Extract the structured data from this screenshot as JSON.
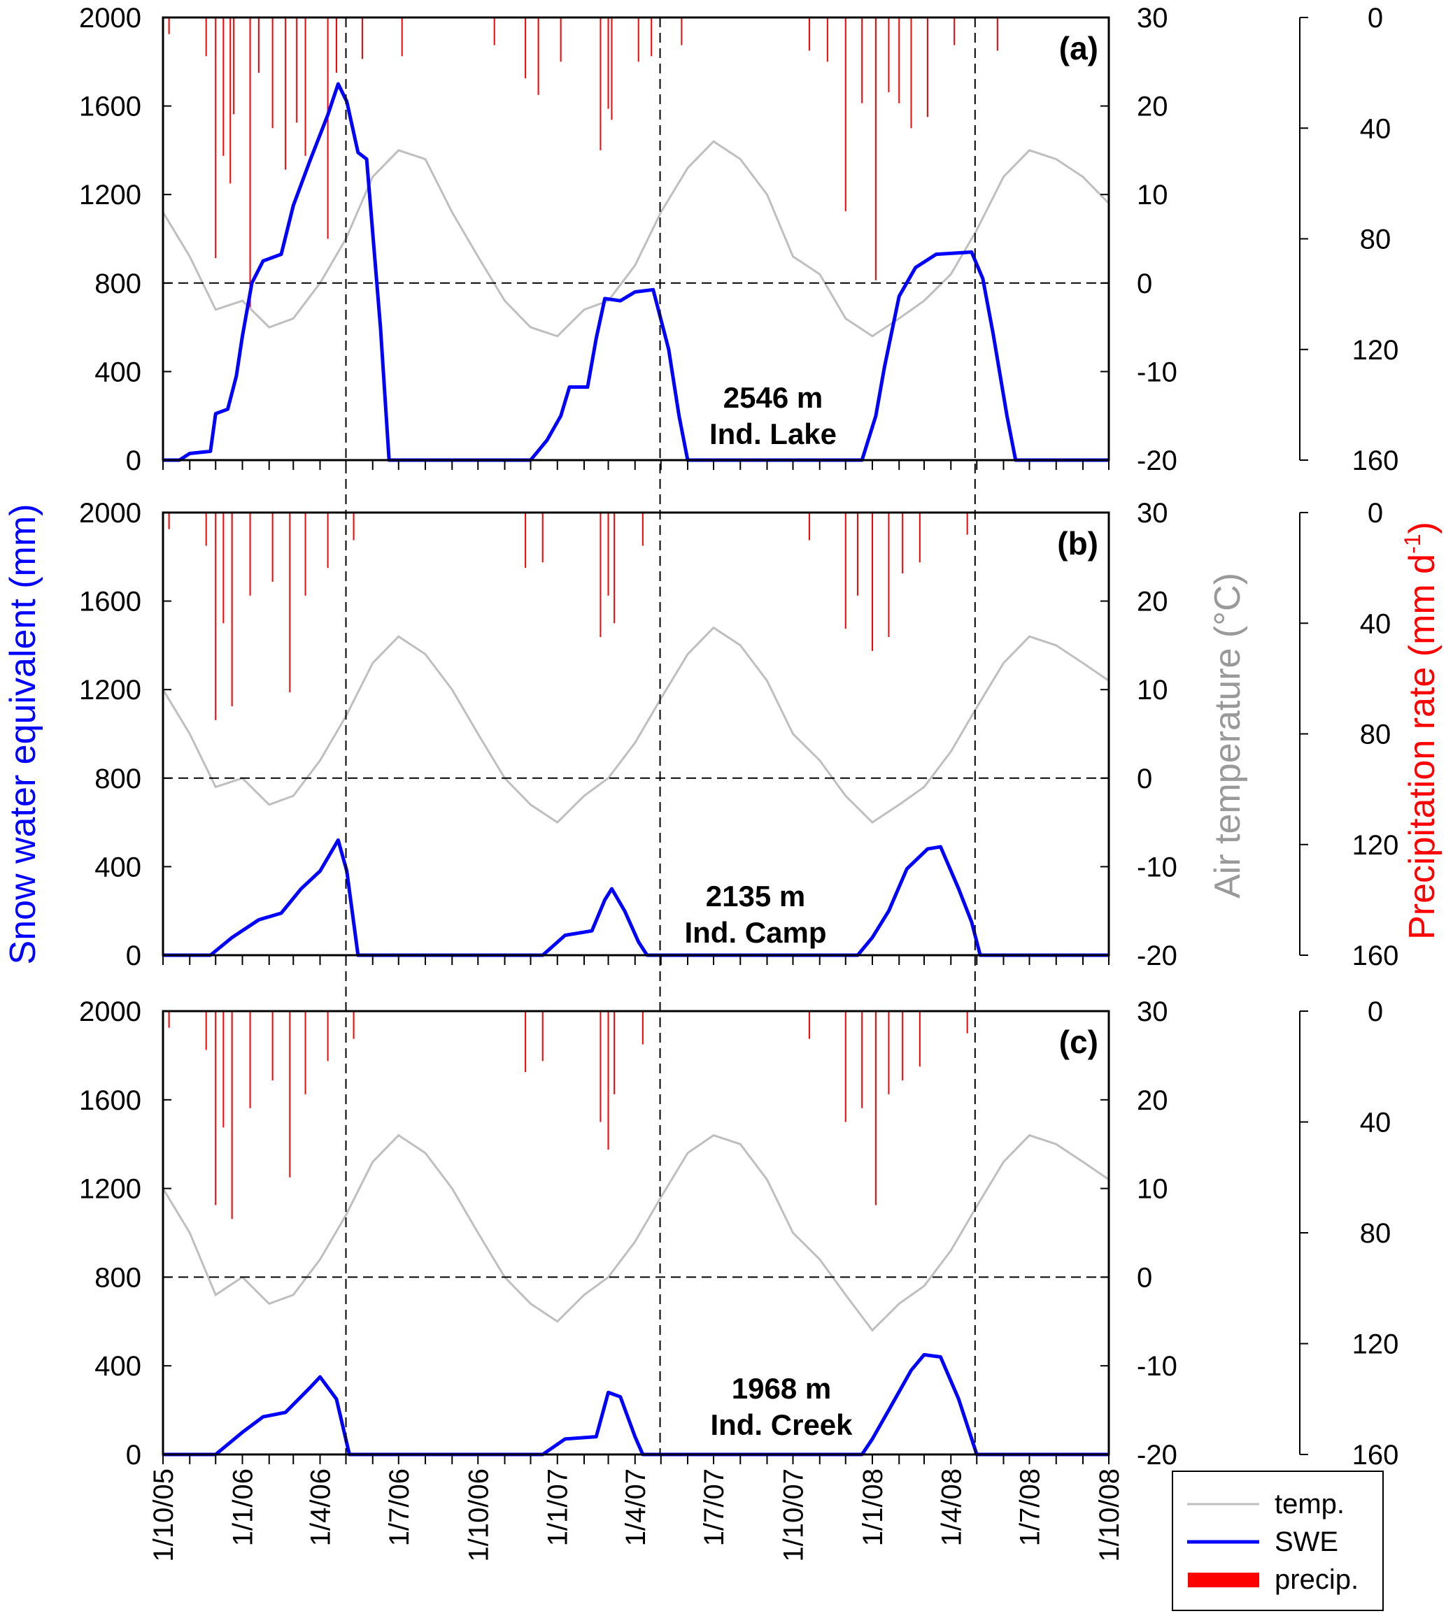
{
  "chart_data": {
    "type": "line",
    "x_range": [
      "2005-10-01",
      "2008-10-01"
    ],
    "x_tick_labels": [
      "1/10/05",
      "1/1/06",
      "1/4/06",
      "1/7/06",
      "1/10/06",
      "1/1/07",
      "1/4/07",
      "1/7/07",
      "1/10/07",
      "1/1/08",
      "1/4/08",
      "1/7/08",
      "1/10/08"
    ],
    "x_tick_dates": [
      "2005-10-01",
      "2006-01-01",
      "2006-04-01",
      "2006-07-01",
      "2006-10-01",
      "2007-01-01",
      "2007-04-01",
      "2007-07-01",
      "2007-10-01",
      "2008-01-01",
      "2008-04-01",
      "2008-07-01",
      "2008-10-01"
    ],
    "reference_lines": {
      "dates": [
        "2006-05-01",
        "2007-04-30",
        "2008-04-29"
      ],
      "temperature_c": 0
    },
    "axes": {
      "swe": {
        "label": "Snow water equivalent (mm)",
        "range": [
          0,
          2000
        ],
        "ticks": [
          "0",
          "400",
          "800",
          "1200",
          "1600",
          "2000"
        ],
        "color": "#0000ff"
      },
      "temperature": {
        "label": "Air temperature (°C)",
        "range": [
          -20,
          30
        ],
        "ticks": [
          "-20",
          "-10",
          "0",
          "10",
          "20",
          "30"
        ],
        "color": "#999999"
      },
      "precip": {
        "label": "Precipitation rate (mm d",
        "label_sup": "-1",
        "label_end": ")",
        "range": [
          160,
          0
        ],
        "inverted": true,
        "ticks": [
          "0",
          "40",
          "80",
          "120",
          "160"
        ],
        "color": "#ff0000"
      }
    },
    "legend": {
      "placement": "bottom-right",
      "items": [
        {
          "label": "temp.",
          "color": "#bfbfbf"
        },
        {
          "label": "SWE",
          "color": "#0000ff"
        },
        {
          "label": "precip.",
          "color": "#ff0000"
        }
      ]
    },
    "panels": [
      {
        "letter": "(a)",
        "elevation": "2546 m",
        "station": "Ind. Lake",
        "swe": [
          [
            "2005-10-01",
            0
          ],
          [
            "2005-10-20",
            0
          ],
          [
            "2005-11-01",
            30
          ],
          [
            "2005-11-25",
            40
          ],
          [
            "2005-12-01",
            210
          ],
          [
            "2005-12-15",
            230
          ],
          [
            "2005-12-25",
            380
          ],
          [
            "2006-01-01",
            560
          ],
          [
            "2006-01-12",
            800
          ],
          [
            "2006-01-25",
            900
          ],
          [
            "2006-02-15",
            930
          ],
          [
            "2006-03-01",
            1150
          ],
          [
            "2006-03-20",
            1350
          ],
          [
            "2006-04-10",
            1560
          ],
          [
            "2006-04-22",
            1700
          ],
          [
            "2006-05-02",
            1620
          ],
          [
            "2006-05-15",
            1390
          ],
          [
            "2006-05-25",
            1360
          ],
          [
            "2006-06-10",
            600
          ],
          [
            "2006-06-20",
            0
          ],
          [
            "2006-12-01",
            0
          ],
          [
            "2006-12-20",
            90
          ],
          [
            "2007-01-05",
            200
          ],
          [
            "2007-01-15",
            330
          ],
          [
            "2007-02-05",
            330
          ],
          [
            "2007-02-15",
            550
          ],
          [
            "2007-02-25",
            730
          ],
          [
            "2007-03-15",
            720
          ],
          [
            "2007-04-01",
            760
          ],
          [
            "2007-04-22",
            770
          ],
          [
            "2007-05-10",
            500
          ],
          [
            "2007-05-22",
            200
          ],
          [
            "2007-06-01",
            0
          ],
          [
            "2007-12-20",
            0
          ],
          [
            "2007-12-28",
            100
          ],
          [
            "2008-01-05",
            200
          ],
          [
            "2008-01-15",
            420
          ],
          [
            "2008-02-01",
            740
          ],
          [
            "2008-02-20",
            870
          ],
          [
            "2008-03-15",
            930
          ],
          [
            "2008-04-25",
            940
          ],
          [
            "2008-05-08",
            820
          ],
          [
            "2008-05-20",
            570
          ],
          [
            "2008-06-05",
            200
          ],
          [
            "2008-06-15",
            0
          ],
          [
            "2008-10-01",
            0
          ]
        ],
        "temperature": [
          8,
          3,
          -3,
          -2,
          -5,
          -4,
          0,
          5,
          12,
          15,
          14,
          8,
          3,
          -2,
          -5,
          -6,
          -3,
          -2,
          2,
          8,
          13,
          16,
          14,
          10,
          3,
          1,
          -4,
          -6,
          -4,
          -2,
          1,
          6,
          12,
          15,
          14,
          12,
          9
        ],
        "precip": [
          [
            "2005-10-08",
            6
          ],
          [
            "2005-11-20",
            14
          ],
          [
            "2005-12-01",
            87
          ],
          [
            "2005-12-10",
            50
          ],
          [
            "2005-12-18",
            60
          ],
          [
            "2005-12-22",
            35
          ],
          [
            "2006-01-10",
            105
          ],
          [
            "2006-01-20",
            20
          ],
          [
            "2006-02-05",
            40
          ],
          [
            "2006-02-20",
            55
          ],
          [
            "2006-03-05",
            38
          ],
          [
            "2006-03-15",
            50
          ],
          [
            "2006-04-10",
            80
          ],
          [
            "2006-04-20",
            20
          ],
          [
            "2006-05-20",
            15
          ],
          [
            "2006-07-05",
            14
          ],
          [
            "2006-10-20",
            10
          ],
          [
            "2006-11-25",
            22
          ],
          [
            "2006-12-10",
            28
          ],
          [
            "2007-01-05",
            16
          ],
          [
            "2007-02-20",
            48
          ],
          [
            "2007-03-01",
            33
          ],
          [
            "2007-03-05",
            37
          ],
          [
            "2007-04-05",
            16
          ],
          [
            "2007-04-20",
            14
          ],
          [
            "2007-05-25",
            10
          ],
          [
            "2007-10-20",
            12
          ],
          [
            "2007-11-10",
            16
          ],
          [
            "2007-12-01",
            70
          ],
          [
            "2007-12-20",
            31
          ],
          [
            "2008-01-05",
            95
          ],
          [
            "2008-01-20",
            27
          ],
          [
            "2008-02-01",
            31
          ],
          [
            "2008-02-15",
            40
          ],
          [
            "2008-03-05",
            36
          ],
          [
            "2008-04-05",
            10
          ],
          [
            "2008-05-25",
            12
          ]
        ]
      },
      {
        "letter": "(b)",
        "elevation": "2135 m",
        "station": "Ind. Camp",
        "swe": [
          [
            "2005-10-01",
            0
          ],
          [
            "2005-11-25",
            0
          ],
          [
            "2005-12-20",
            80
          ],
          [
            "2006-01-20",
            160
          ],
          [
            "2006-02-15",
            190
          ],
          [
            "2006-03-10",
            300
          ],
          [
            "2006-04-01",
            380
          ],
          [
            "2006-04-22",
            520
          ],
          [
            "2006-05-02",
            380
          ],
          [
            "2006-05-15",
            0
          ],
          [
            "2006-12-15",
            0
          ],
          [
            "2007-01-10",
            90
          ],
          [
            "2007-02-10",
            110
          ],
          [
            "2007-02-25",
            250
          ],
          [
            "2007-03-05",
            300
          ],
          [
            "2007-03-20",
            200
          ],
          [
            "2007-04-05",
            60
          ],
          [
            "2007-04-15",
            0
          ],
          [
            "2007-12-15",
            0
          ],
          [
            "2008-01-01",
            80
          ],
          [
            "2008-01-20",
            200
          ],
          [
            "2008-02-10",
            390
          ],
          [
            "2008-03-05",
            480
          ],
          [
            "2008-03-20",
            490
          ],
          [
            "2008-04-10",
            300
          ],
          [
            "2008-04-25",
            150
          ],
          [
            "2008-05-05",
            0
          ],
          [
            "2008-10-01",
            0
          ]
        ],
        "temperature": [
          10,
          5,
          -1,
          0,
          -3,
          -2,
          2,
          7,
          13,
          16,
          14,
          10,
          5,
          0,
          -3,
          -5,
          -2,
          0,
          4,
          9,
          14,
          17,
          15,
          11,
          5,
          2,
          -2,
          -5,
          -3,
          -1,
          3,
          8,
          13,
          16,
          15,
          13,
          11
        ],
        "precip": [
          [
            "2005-10-08",
            6
          ],
          [
            "2005-11-20",
            12
          ],
          [
            "2005-12-01",
            75
          ],
          [
            "2005-12-10",
            40
          ],
          [
            "2005-12-20",
            70
          ],
          [
            "2006-01-10",
            30
          ],
          [
            "2006-02-05",
            25
          ],
          [
            "2006-02-25",
            65
          ],
          [
            "2006-03-15",
            30
          ],
          [
            "2006-04-10",
            20
          ],
          [
            "2006-05-10",
            10
          ],
          [
            "2006-11-25",
            20
          ],
          [
            "2006-12-15",
            18
          ],
          [
            "2007-02-20",
            45
          ],
          [
            "2007-03-01",
            30
          ],
          [
            "2007-03-08",
            40
          ],
          [
            "2007-04-10",
            12
          ],
          [
            "2007-10-20",
            10
          ],
          [
            "2007-12-01",
            42
          ],
          [
            "2007-12-15",
            30
          ],
          [
            "2008-01-01",
            50
          ],
          [
            "2008-01-20",
            45
          ],
          [
            "2008-02-05",
            22
          ],
          [
            "2008-02-25",
            18
          ],
          [
            "2008-04-20",
            8
          ]
        ]
      },
      {
        "letter": "(c)",
        "elevation": "1968 m",
        "station": "Ind. Creek",
        "swe": [
          [
            "2005-10-01",
            0
          ],
          [
            "2005-12-01",
            0
          ],
          [
            "2006-01-01",
            100
          ],
          [
            "2006-01-25",
            170
          ],
          [
            "2006-02-20",
            190
          ],
          [
            "2006-03-20",
            300
          ],
          [
            "2006-04-01",
            350
          ],
          [
            "2006-04-20",
            250
          ],
          [
            "2006-05-05",
            0
          ],
          [
            "2006-12-15",
            0
          ],
          [
            "2007-01-10",
            70
          ],
          [
            "2007-02-15",
            80
          ],
          [
            "2007-03-01",
            280
          ],
          [
            "2007-03-15",
            260
          ],
          [
            "2007-04-01",
            80
          ],
          [
            "2007-04-10",
            0
          ],
          [
            "2007-12-20",
            0
          ],
          [
            "2008-01-01",
            70
          ],
          [
            "2008-01-20",
            200
          ],
          [
            "2008-02-15",
            380
          ],
          [
            "2008-03-01",
            450
          ],
          [
            "2008-03-20",
            440
          ],
          [
            "2008-04-10",
            250
          ],
          [
            "2008-05-01",
            0
          ],
          [
            "2008-10-01",
            0
          ]
        ],
        "temperature": [
          10,
          5,
          -2,
          0,
          -3,
          -2,
          2,
          7,
          13,
          16,
          14,
          10,
          5,
          0,
          -3,
          -5,
          -2,
          0,
          4,
          9,
          14,
          16,
          15,
          11,
          5,
          2,
          -2,
          -6,
          -3,
          -1,
          3,
          8,
          13,
          16,
          15,
          13,
          11
        ],
        "precip": [
          [
            "2005-10-08",
            6
          ],
          [
            "2005-11-20",
            14
          ],
          [
            "2005-12-01",
            70
          ],
          [
            "2005-12-10",
            42
          ],
          [
            "2005-12-20",
            75
          ],
          [
            "2006-01-10",
            35
          ],
          [
            "2006-02-05",
            25
          ],
          [
            "2006-02-25",
            60
          ],
          [
            "2006-03-15",
            30
          ],
          [
            "2006-04-10",
            18
          ],
          [
            "2006-05-10",
            10
          ],
          [
            "2006-11-25",
            22
          ],
          [
            "2006-12-15",
            18
          ],
          [
            "2007-02-20",
            40
          ],
          [
            "2007-03-01",
            50
          ],
          [
            "2007-03-08",
            30
          ],
          [
            "2007-04-10",
            12
          ],
          [
            "2007-10-20",
            10
          ],
          [
            "2007-12-01",
            40
          ],
          [
            "2007-12-20",
            35
          ],
          [
            "2008-01-05",
            70
          ],
          [
            "2008-01-20",
            30
          ],
          [
            "2008-02-05",
            25
          ],
          [
            "2008-02-25",
            20
          ],
          [
            "2008-04-20",
            8
          ]
        ]
      }
    ]
  }
}
